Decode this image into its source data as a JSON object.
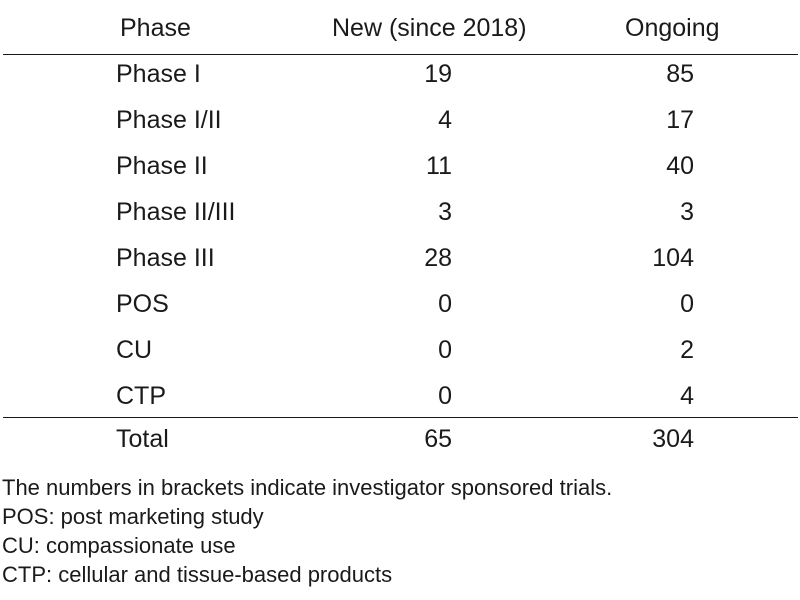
{
  "table": {
    "headers": {
      "phase": "Phase",
      "new": "New (since 2018)",
      "ongoing": "Ongoing"
    },
    "rows": [
      {
        "phase": "Phase I",
        "new": "19",
        "ongoing": "85"
      },
      {
        "phase": "Phase I/II",
        "new": "4",
        "ongoing": "17"
      },
      {
        "phase": "Phase II",
        "new": "11",
        "ongoing": "40"
      },
      {
        "phase": "Phase II/III",
        "new": "3",
        "ongoing": "3"
      },
      {
        "phase": "Phase III",
        "new": "28",
        "ongoing": "104"
      },
      {
        "phase": "POS",
        "new": "0",
        "ongoing": "0"
      },
      {
        "phase": "CU",
        "new": "0",
        "ongoing": "2"
      },
      {
        "phase": "CTP",
        "new": "0",
        "ongoing": "4"
      }
    ],
    "total": {
      "phase": "Total",
      "new": "65",
      "ongoing": "304"
    }
  },
  "notes": [
    "The numbers in brackets indicate investigator sponsored trials.",
    "POS: post marketing study",
    "CU: compassionate use",
    "CTP: cellular and tissue-based products"
  ]
}
